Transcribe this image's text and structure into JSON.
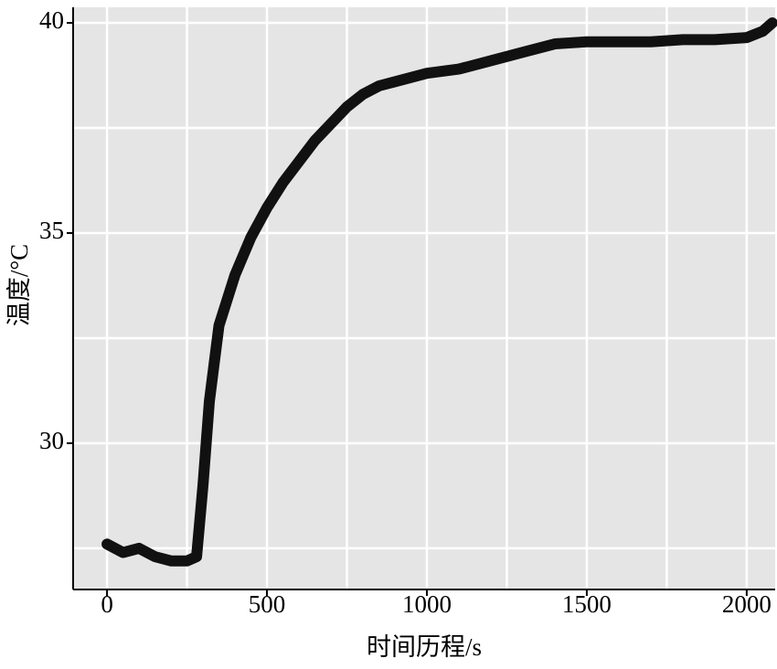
{
  "chart_data": {
    "type": "line",
    "x_label": "时间历程/s",
    "y_label": "温度/°C",
    "x": [
      0,
      50,
      100,
      150,
      200,
      250,
      280,
      300,
      320,
      350,
      400,
      450,
      500,
      550,
      600,
      650,
      700,
      750,
      800,
      850,
      900,
      1000,
      1100,
      1200,
      1300,
      1400,
      1500,
      1600,
      1700,
      1800,
      1900,
      2000,
      2050,
      2080
    ],
    "series": [
      {
        "name": "温度",
        "color": "#111111",
        "values": [
          27.6,
          27.4,
          27.5,
          27.3,
          27.2,
          27.2,
          27.3,
          29,
          31,
          32.8,
          34,
          34.9,
          35.6,
          36.2,
          36.7,
          37.2,
          37.6,
          38,
          38.3,
          38.5,
          38.6,
          38.8,
          38.9,
          39.1,
          39.3,
          39.5,
          39.55,
          39.55,
          39.55,
          39.6,
          39.6,
          39.65,
          39.8,
          40
        ]
      }
    ],
    "xlim": [
      -106,
      2089
    ],
    "ylim": [
      26.52,
      40.37
    ],
    "xticks": [
      0,
      500,
      1000,
      1500,
      2000
    ],
    "yticks": [
      30,
      35,
      40
    ],
    "xgrid": [
      0,
      250,
      500,
      750,
      1000,
      1250,
      1500,
      1750,
      2000
    ],
    "ygrid": [
      27.5,
      30,
      32.5,
      35,
      37.5,
      40
    ],
    "grid": true
  }
}
